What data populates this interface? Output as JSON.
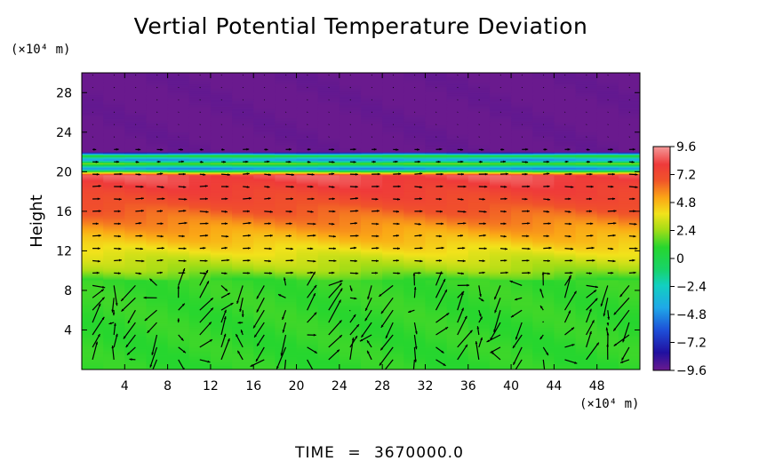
{
  "chart_data": {
    "type": "heatmap",
    "title": "Vertial Potential Temperature Deviation",
    "ylabel": "Height",
    "y_unit": "(×10⁴ m)",
    "x_unit": "(×10⁴ m)",
    "xlim": [
      0,
      52
    ],
    "ylim": [
      0,
      30
    ],
    "x_ticks": [
      4,
      8,
      12,
      16,
      20,
      24,
      28,
      32,
      36,
      40,
      44,
      48
    ],
    "x_tick_labels": [
      "4",
      "8",
      "12",
      "16",
      "20",
      "24",
      "28",
      "32",
      "36",
      "40",
      "44",
      "48"
    ],
    "y_ticks": [
      4,
      8,
      12,
      16,
      20,
      24,
      28
    ],
    "y_tick_labels": [
      "4",
      "8",
      "12",
      "16",
      "20",
      "24",
      "28"
    ],
    "colorbar": {
      "range": [
        -9.6,
        9.6
      ],
      "ticks": [
        9.6,
        7.2,
        4.8,
        2.4,
        0,
        -2.4,
        -4.8,
        -7.2,
        -9.6
      ],
      "tick_labels": [
        "9.6",
        "7.2",
        "4.8",
        "2.4",
        "0",
        "−2.4",
        "−4.8",
        "−7.2",
        "−9.6"
      ]
    },
    "profile": [
      {
        "height": 0,
        "value": 0.9
      },
      {
        "height": 9,
        "value": 1.0
      },
      {
        "height": 10,
        "value": 2.3
      },
      {
        "height": 11.5,
        "value": 3.4
      },
      {
        "height": 13,
        "value": 4.6
      },
      {
        "height": 14.5,
        "value": 5.6
      },
      {
        "height": 16,
        "value": 6.6
      },
      {
        "height": 17.5,
        "value": 7.5
      },
      {
        "height": 19,
        "value": 8.3
      },
      {
        "height": 19.6,
        "value": 8.6
      },
      {
        "height": 19.9,
        "value": 3.0
      },
      {
        "height": 20.3,
        "value": -5.0
      },
      {
        "height": 20.8,
        "value": 1.5
      },
      {
        "height": 21.2,
        "value": -4.5
      },
      {
        "height": 21.6,
        "value": 0.5
      },
      {
        "height": 22,
        "value": -9.6
      },
      {
        "height": 30,
        "value": -9.6
      }
    ],
    "vector_field": "wind vectors (arrows) overlaid on the colour field"
  },
  "footer": {
    "time_label": "TIME",
    "time_separator": "=",
    "time_value": "3670000.0"
  }
}
